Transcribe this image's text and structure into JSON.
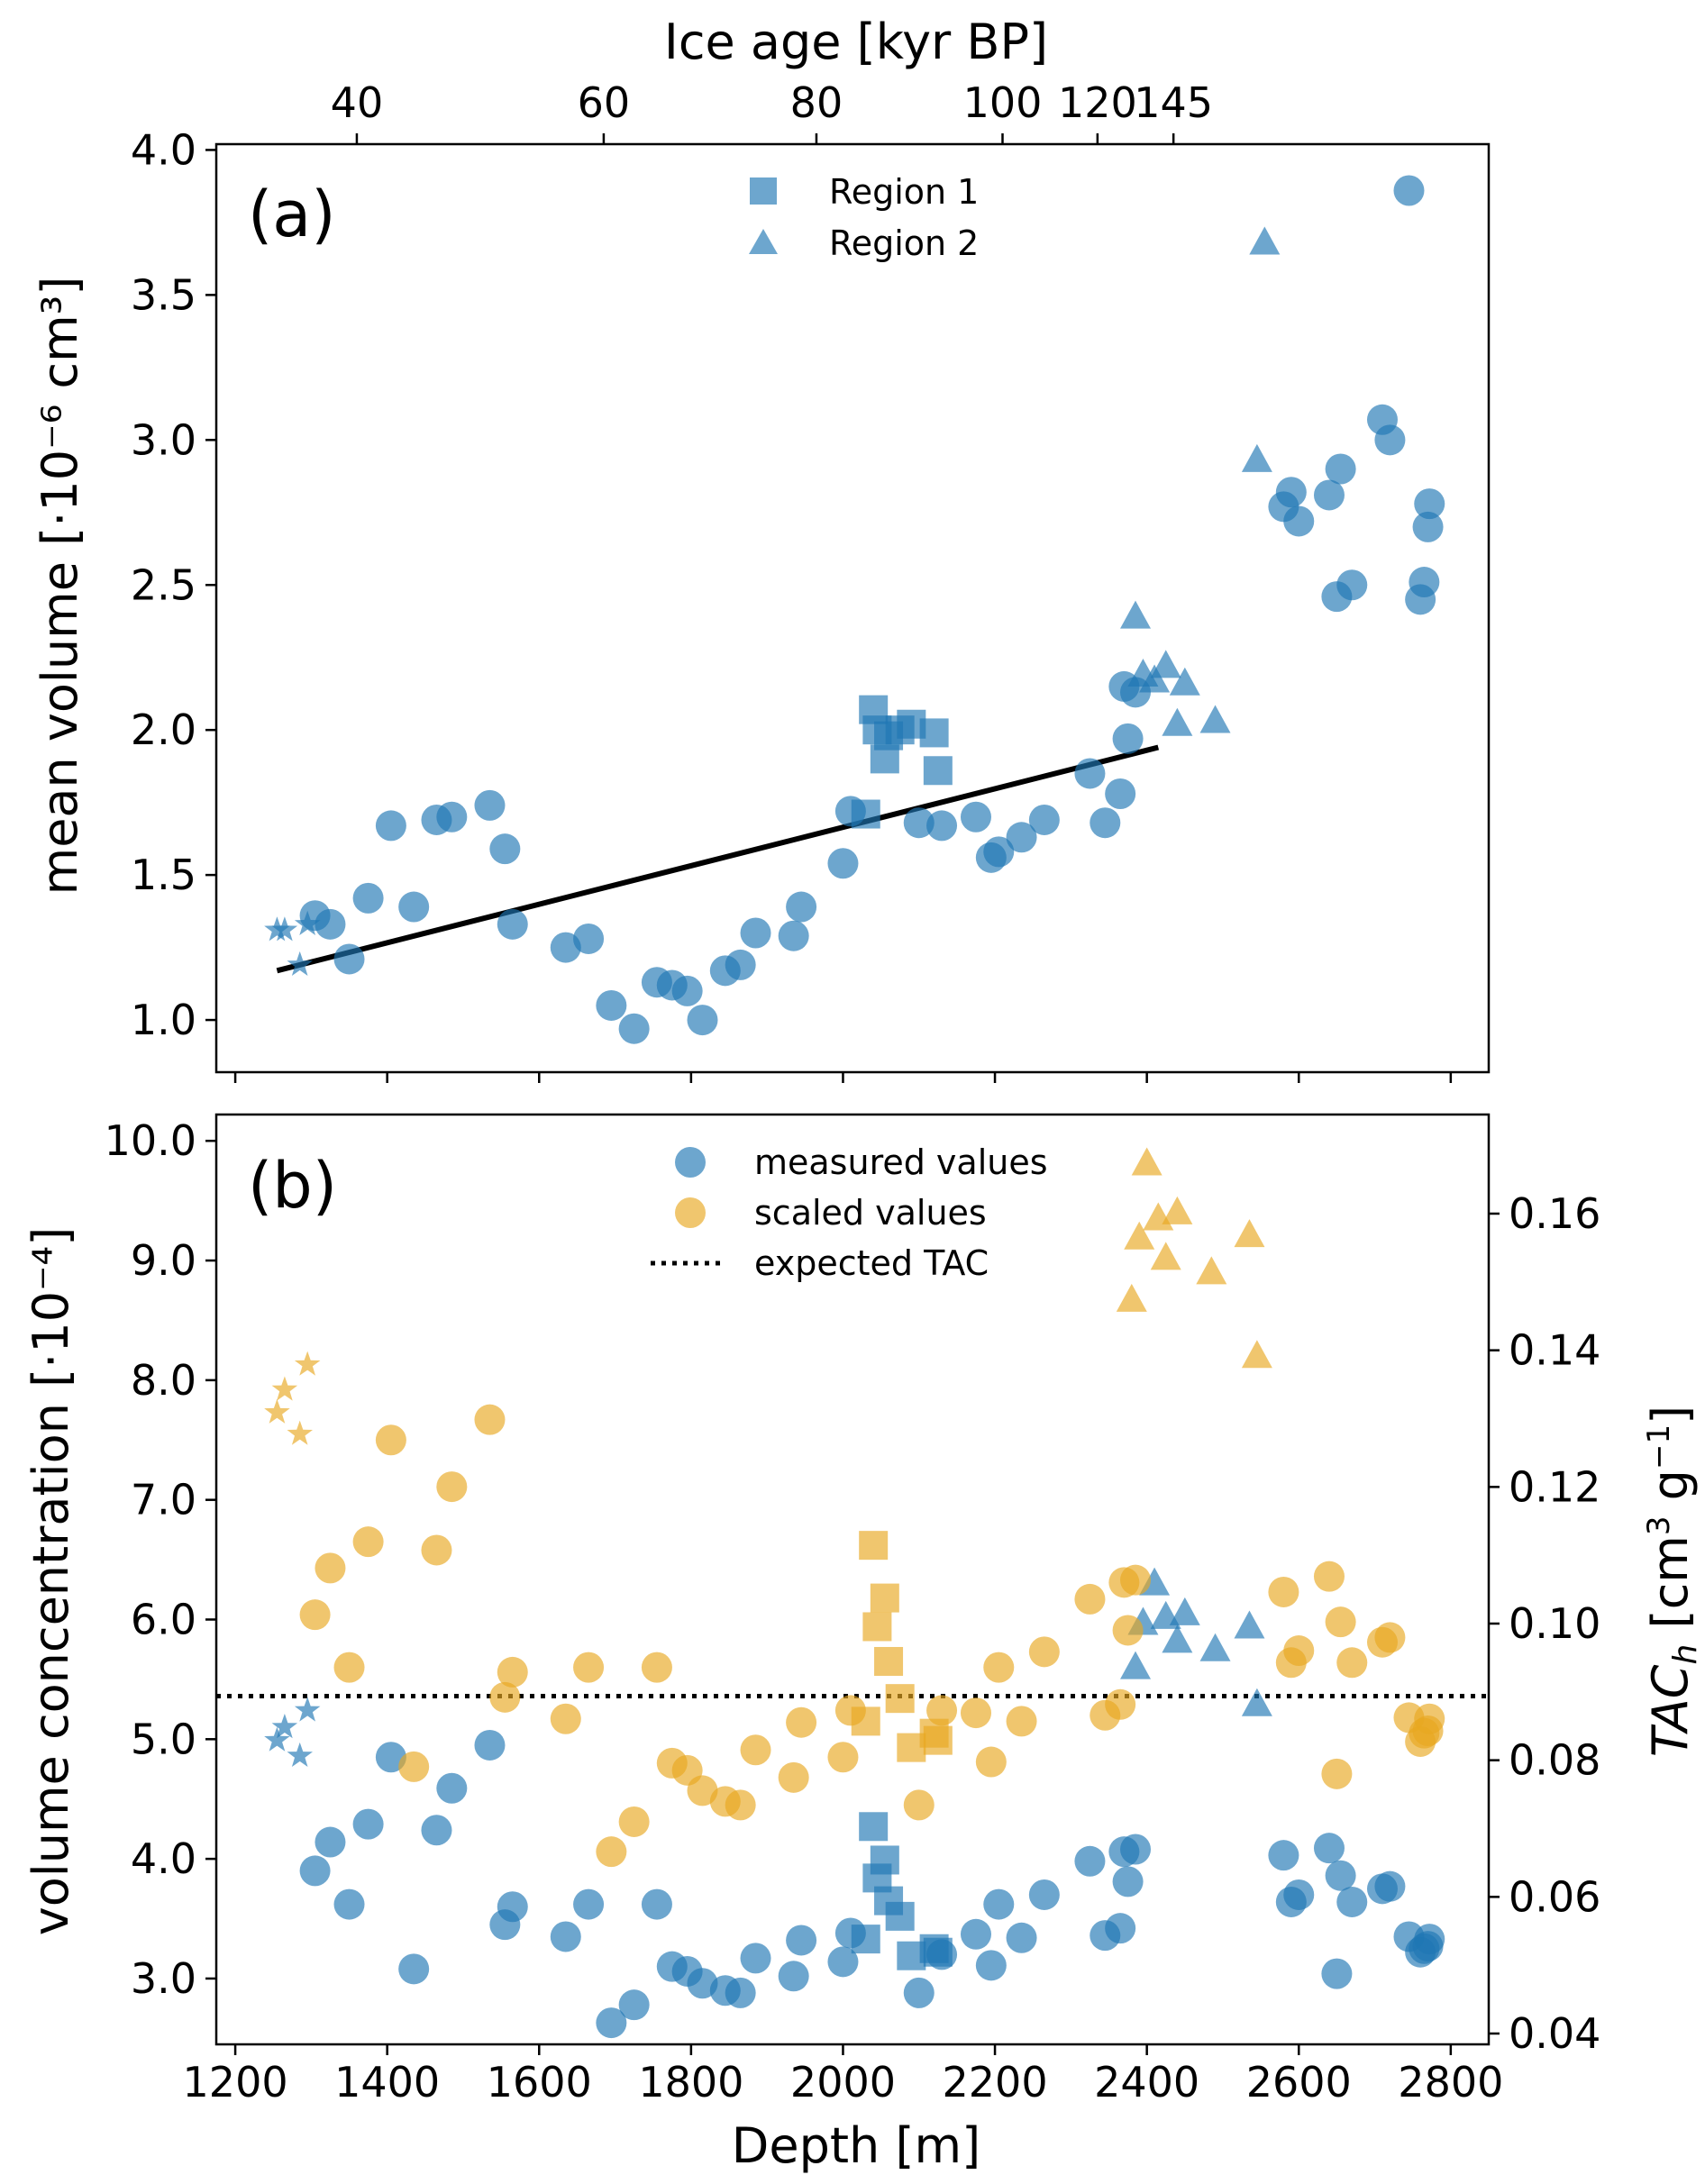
{
  "colors": {
    "blue": "#1f77b4",
    "orange": "#e8a820",
    "black": "#000000"
  },
  "chart_data": [
    {
      "type": "scatter",
      "panel_label": "(a)",
      "title": "",
      "xlabel": "Depth [m]",
      "ylabel": "mean volume [·10⁻⁶ cm³]",
      "ylim": [
        0.82,
        4.02
      ],
      "xlim": [
        1175,
        2850
      ],
      "yticks": [
        "1.0",
        "1.5",
        "2.0",
        "2.5",
        "3.0",
        "3.5",
        "4.0"
      ],
      "top_axis": {
        "label": "Ice age [kyr BP]",
        "ticks": [
          {
            "label": "40",
            "depth": 1360
          },
          {
            "label": "60",
            "depth": 1685
          },
          {
            "label": "80",
            "depth": 1965
          },
          {
            "label": "100",
            "depth": 2210
          },
          {
            "label": "120",
            "depth": 2335
          },
          {
            "label": "145",
            "depth": 2435
          }
        ]
      },
      "legend": {
        "placement": "top-center",
        "entries": [
          "Region 1",
          "Region 2"
        ]
      },
      "series": [
        {
          "name": "measured",
          "marker": "circle",
          "x": [
            1305,
            1325,
            1350,
            1375,
            1405,
            1435,
            1465,
            1485,
            1535,
            1555,
            1565,
            1635,
            1665,
            1695,
            1725,
            1755,
            1775,
            1795,
            1815,
            1845,
            1865,
            1885,
            1935,
            1945,
            2000,
            2010,
            2100,
            2130,
            2175,
            2195,
            2205,
            2235,
            2265,
            2325,
            2345,
            2365,
            2370,
            2375,
            2385,
            2580,
            2590,
            2600,
            2640,
            2650,
            2655,
            2670,
            2710,
            2720,
            2745,
            2760,
            2765,
            2770,
            2772
          ],
          "y": [
            1.36,
            1.33,
            1.21,
            1.42,
            1.67,
            1.39,
            1.69,
            1.7,
            1.74,
            1.59,
            1.33,
            1.25,
            1.28,
            1.05,
            0.97,
            1.13,
            1.12,
            1.1,
            1.0,
            1.17,
            1.19,
            1.3,
            1.29,
            1.39,
            1.54,
            1.72,
            1.68,
            1.67,
            1.7,
            1.56,
            1.58,
            1.63,
            1.69,
            1.85,
            1.68,
            1.78,
            2.15,
            1.97,
            2.13,
            2.77,
            2.82,
            2.72,
            2.81,
            2.46,
            2.9,
            2.5,
            3.07,
            3.0,
            3.86,
            2.45,
            2.51,
            2.7,
            2.78
          ]
        },
        {
          "name": "Region 1",
          "marker": "square",
          "x": [
            2030,
            2040,
            2045,
            2055,
            2060,
            2075,
            2090,
            2120,
            2125
          ],
          "y": [
            1.71,
            2.07,
            2.0,
            1.9,
            1.98,
            2.0,
            2.02,
            1.99,
            1.86
          ]
        },
        {
          "name": "Region 2",
          "marker": "triangle",
          "x": [
            2385,
            2395,
            2410,
            2425,
            2440,
            2450,
            2490,
            2545,
            2555
          ],
          "y": [
            2.39,
            2.19,
            2.17,
            2.22,
            2.02,
            2.16,
            2.03,
            2.93,
            3.68
          ]
        },
        {
          "name": "stars",
          "marker": "star",
          "x": [
            1255,
            1265,
            1285,
            1295
          ],
          "y": [
            1.31,
            1.31,
            1.19,
            1.33
          ]
        }
      ],
      "fit_line": {
        "x": [
          1255,
          2415
        ],
        "y": [
          1.17,
          1.94
        ]
      }
    },
    {
      "type": "scatter",
      "panel_label": "(b)",
      "title": "",
      "xlabel": "Depth [m]",
      "ylabel": "volume concentration [·10⁻⁴]",
      "ylabel_right": "TACh [cm³ g⁻¹]",
      "ylim": [
        2.45,
        10.22
      ],
      "xlim": [
        1175,
        2850
      ],
      "xticks": [
        "1200",
        "1400",
        "1600",
        "1800",
        "2000",
        "2200",
        "2400",
        "2600",
        "2800"
      ],
      "yticks": [
        "3.0",
        "4.0",
        "5.0",
        "6.0",
        "7.0",
        "8.0",
        "9.0",
        "10.0"
      ],
      "yticks_right": [
        "0.04",
        "0.06",
        "0.08",
        "0.10",
        "0.12",
        "0.14",
        "0.16"
      ],
      "expected_tac": 5.36,
      "legend": {
        "placement": "top-center",
        "entries": [
          "measured values",
          "scaled values",
          "expected TAC"
        ]
      },
      "series": [
        {
          "name": "measured values",
          "marker": "circle",
          "color": "blue",
          "x": [
            1305,
            1325,
            1350,
            1375,
            1405,
            1435,
            1465,
            1485,
            1535,
            1555,
            1565,
            1635,
            1665,
            1695,
            1725,
            1755,
            1775,
            1795,
            1815,
            1845,
            1865,
            1885,
            1935,
            1945,
            2000,
            2010,
            2100,
            2130,
            2175,
            2195,
            2205,
            2235,
            2265,
            2325,
            2345,
            2365,
            2370,
            2375,
            2385,
            2580,
            2590,
            2600,
            2640,
            2650,
            2655,
            2670,
            2710,
            2720,
            2745,
            2760,
            2765,
            2770,
            2772
          ],
          "y": [
            3.9,
            4.14,
            3.62,
            4.29,
            4.85,
            3.08,
            4.24,
            4.59,
            4.95,
            3.45,
            3.6,
            3.35,
            3.62,
            2.63,
            2.78,
            3.62,
            3.1,
            3.06,
            2.96,
            2.9,
            2.88,
            3.17,
            3.02,
            3.32,
            3.14,
            3.38,
            2.88,
            3.2,
            3.37,
            3.11,
            3.62,
            3.34,
            3.7,
            3.98,
            3.36,
            3.42,
            4.06,
            3.81,
            4.08,
            4.03,
            3.64,
            3.7,
            4.09,
            3.04,
            3.86,
            3.64,
            3.75,
            3.77,
            3.35,
            3.22,
            3.25,
            3.27,
            3.33
          ]
        },
        {
          "name": "measured squares",
          "marker": "square",
          "color": "blue",
          "x": [
            2030,
            2040,
            2045,
            2055,
            2060,
            2075,
            2090,
            2120,
            2125
          ],
          "y": [
            3.33,
            4.27,
            3.84,
            3.99,
            3.65,
            3.52,
            3.19,
            3.25,
            3.22
          ]
        },
        {
          "name": "measured triangles",
          "marker": "triangle",
          "color": "blue",
          "x": [
            2385,
            2395,
            2410,
            2425,
            2440,
            2450,
            2490,
            2535,
            2545
          ],
          "y": [
            5.6,
            5.97,
            6.3,
            6.02,
            5.82,
            6.05,
            5.75,
            5.94,
            5.29
          ]
        },
        {
          "name": "measured stars",
          "marker": "star",
          "color": "blue",
          "x": [
            1255,
            1265,
            1285,
            1295
          ],
          "y": [
            4.99,
            5.1,
            4.86,
            5.24
          ]
        },
        {
          "name": "scaled values",
          "marker": "circle",
          "color": "orange",
          "x": [
            1305,
            1325,
            1350,
            1375,
            1405,
            1435,
            1465,
            1485,
            1535,
            1555,
            1565,
            1635,
            1665,
            1695,
            1725,
            1755,
            1775,
            1795,
            1815,
            1845,
            1865,
            1885,
            1935,
            1945,
            2000,
            2010,
            2100,
            2130,
            2175,
            2195,
            2205,
            2235,
            2265,
            2325,
            2345,
            2365,
            2370,
            2375,
            2385,
            2580,
            2590,
            2600,
            2640,
            2650,
            2655,
            2670,
            2710,
            2720,
            2745,
            2760,
            2765,
            2770,
            2772
          ],
          "y": [
            6.04,
            6.43,
            5.6,
            6.65,
            7.5,
            4.77,
            6.58,
            7.11,
            7.67,
            5.35,
            5.56,
            5.17,
            5.6,
            4.06,
            4.31,
            5.6,
            4.8,
            4.74,
            4.57,
            4.48,
            4.45,
            4.91,
            4.68,
            5.14,
            4.85,
            5.24,
            4.45,
            5.24,
            5.22,
            4.81,
            5.6,
            5.15,
            5.73,
            6.17,
            5.2,
            5.29,
            6.31,
            5.91,
            6.33,
            6.23,
            5.64,
            5.74,
            6.36,
            4.71,
            5.98,
            5.64,
            5.81,
            5.85,
            5.18,
            4.98,
            5.05,
            5.07,
            5.17
          ]
        },
        {
          "name": "scaled squares",
          "marker": "square",
          "color": "orange",
          "x": [
            2030,
            2040,
            2045,
            2055,
            2060,
            2075,
            2090,
            2120,
            2125
          ],
          "y": [
            5.15,
            6.62,
            5.94,
            6.18,
            5.65,
            5.34,
            4.93,
            5.05,
            4.99
          ]
        },
        {
          "name": "scaled triangles",
          "marker": "triangle",
          "color": "orange",
          "x": [
            2380,
            2390,
            2400,
            2415,
            2425,
            2440,
            2485,
            2535,
            2545
          ],
          "y": [
            8.67,
            9.19,
            9.81,
            9.35,
            9.02,
            9.4,
            8.9,
            9.21,
            8.2
          ]
        },
        {
          "name": "scaled stars",
          "marker": "star",
          "color": "orange",
          "x": [
            1255,
            1265,
            1285,
            1295
          ],
          "y": [
            7.73,
            7.92,
            7.55,
            8.13
          ]
        }
      ]
    }
  ]
}
